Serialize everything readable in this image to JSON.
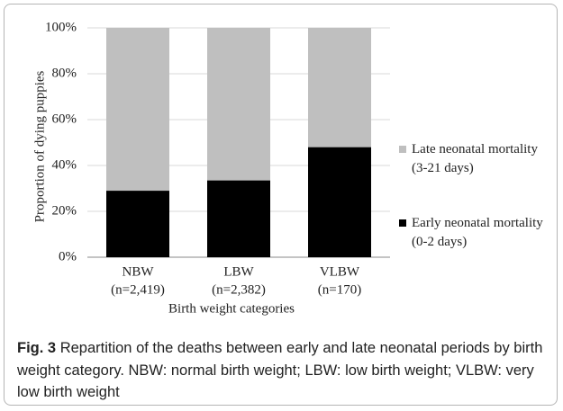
{
  "chart_data": {
    "type": "stacked_bar",
    "categories": [
      [
        "NBW",
        "(n=2,419)"
      ],
      [
        "LBW",
        "(n=2,382)"
      ],
      [
        "VLBW",
        "(n=170)"
      ]
    ],
    "series": [
      {
        "name": "Early neonatal mortality (0-2 days)",
        "color": "#000000",
        "values": [
          29,
          33.5,
          48
        ]
      },
      {
        "name": "Late neonatal mortality (3-21 days)",
        "color": "#bfbfbf",
        "values": [
          71,
          66.5,
          52
        ]
      }
    ],
    "ylim": [
      0,
      100
    ],
    "yticks": [
      {
        "value": 0,
        "label": "0%"
      },
      {
        "value": 20,
        "label": "20%"
      },
      {
        "value": 40,
        "label": "40%"
      },
      {
        "value": 60,
        "label": "60%"
      },
      {
        "value": 80,
        "label": "80%"
      },
      {
        "value": 100,
        "label": "100%"
      }
    ],
    "y_label": "Proportion of dying puppies",
    "x_label": "Birth weight categories",
    "grid": true,
    "legend": "right"
  },
  "caption": {
    "label": "Fig. 3",
    "text": "Repartition of the deaths between early and late neonatal periods by birth weight category. NBW: normal birth weight; LBW: low birth weight; VLBW: very low birth weight"
  }
}
